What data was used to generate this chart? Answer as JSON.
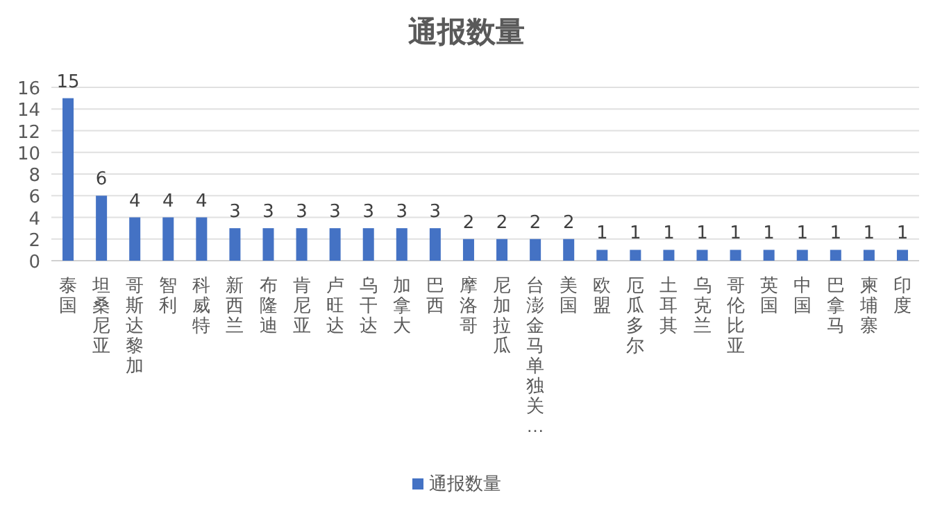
{
  "chart_data": {
    "type": "bar",
    "title": "通报数量",
    "categories": [
      "泰国",
      "坦桑尼亚",
      "哥斯达黎加",
      "智利",
      "科威特",
      "新西兰",
      "布隆迪",
      "肯尼亚",
      "卢旺达",
      "乌干达",
      "加拿大",
      "巴西",
      "摩洛哥",
      "尼加拉瓜",
      "台澎金马单独关…",
      "美国",
      "欧盟",
      "厄瓜多尔",
      "土耳其",
      "乌克兰",
      "哥伦比亚",
      "英国",
      "中国",
      "巴拿马",
      "柬埔寨",
      "印度"
    ],
    "series": [
      {
        "name": "通报数量",
        "color": "#4472c4",
        "values": [
          15,
          6,
          4,
          4,
          4,
          3,
          3,
          3,
          3,
          3,
          3,
          3,
          2,
          2,
          2,
          2,
          1,
          1,
          1,
          1,
          1,
          1,
          1,
          1,
          1,
          1
        ]
      }
    ],
    "ylim": [
      0,
      16
    ],
    "yticks": [
      0,
      2,
      4,
      6,
      8,
      10,
      12,
      14,
      16
    ],
    "grid": "y",
    "data_labels": true,
    "legend": "bottom"
  }
}
